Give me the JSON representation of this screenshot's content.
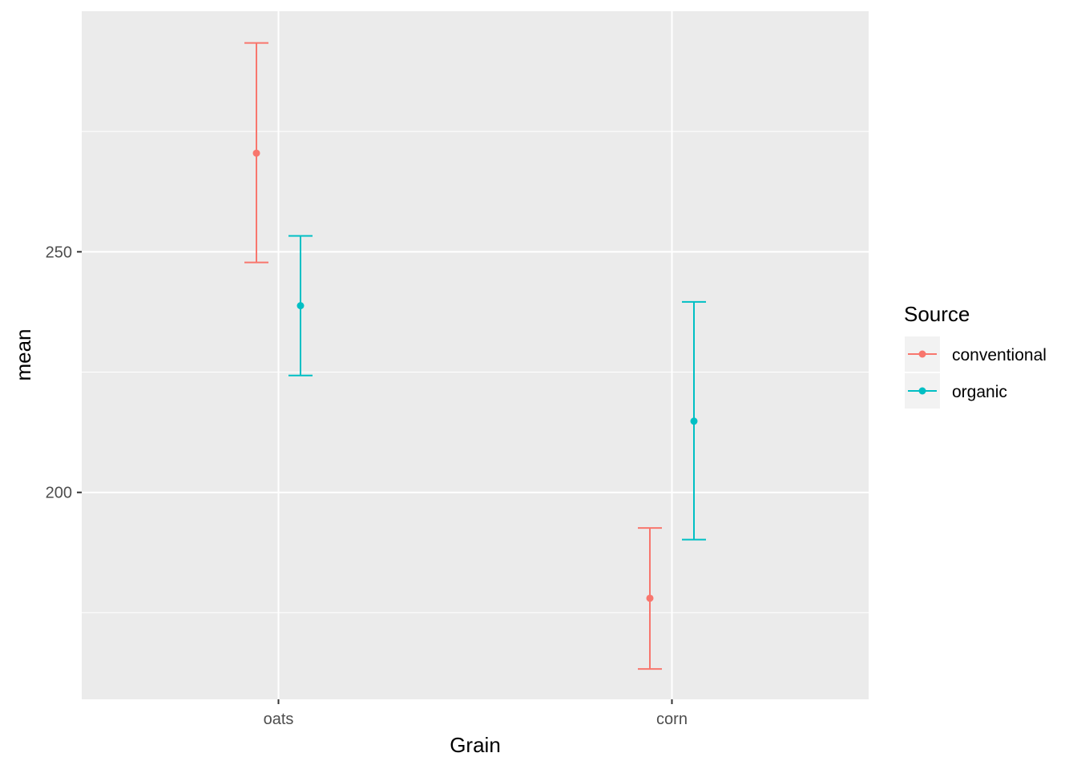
{
  "chart_data": {
    "type": "errorbar",
    "xlabel": "Grain",
    "ylabel": "mean",
    "categories": [
      "oats",
      "corn"
    ],
    "ylim": [
      157,
      300
    ],
    "y_ticks": [
      200,
      250
    ],
    "y_tick_labels": [
      "200",
      "250"
    ],
    "grid": true,
    "legend": {
      "title": "Source",
      "position": "right"
    },
    "series": [
      {
        "name": "conventional",
        "color": "#F8766D",
        "points": [
          {
            "category": "oats",
            "mean": 270.5,
            "lower": 247.8,
            "upper": 293.4
          },
          {
            "category": "corn",
            "mean": 178.0,
            "lower": 163.3,
            "upper": 192.6
          }
        ]
      },
      {
        "name": "organic",
        "color": "#00BFC4",
        "points": [
          {
            "category": "oats",
            "mean": 238.8,
            "lower": 224.3,
            "upper": 253.3
          },
          {
            "category": "corn",
            "mean": 214.8,
            "lower": 190.2,
            "upper": 239.6
          }
        ]
      }
    ]
  }
}
